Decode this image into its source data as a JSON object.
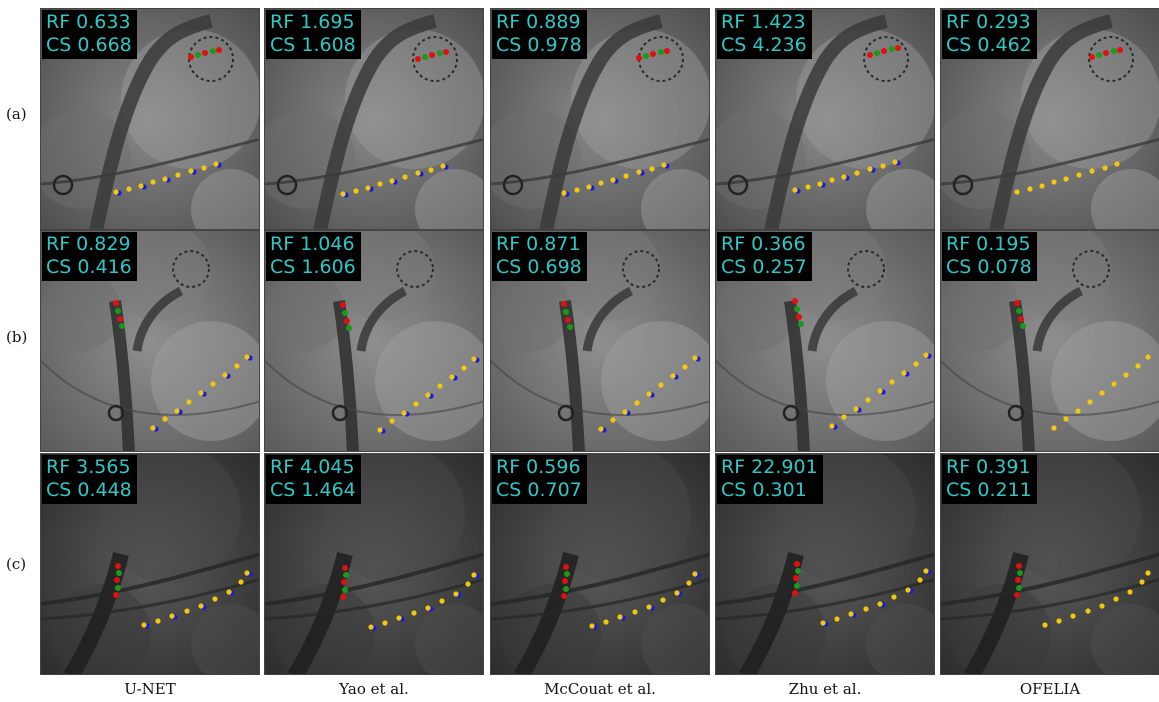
{
  "rows": [
    {
      "label": "(a)",
      "type": "a"
    },
    {
      "label": "(b)",
      "type": "b"
    },
    {
      "label": "(c)",
      "type": "c"
    }
  ],
  "columns": [
    "U-NET",
    "Yao et al.",
    "McCouat et al.",
    "Zhu et al.",
    "OFELIA"
  ],
  "metrics": [
    [
      {
        "rf": "RF 0.633",
        "cs": "CS 0.668"
      },
      {
        "rf": "RF 1.695",
        "cs": "CS 1.608"
      },
      {
        "rf": "RF 0.889",
        "cs": "CS 0.978"
      },
      {
        "rf": "RF 1.423",
        "cs": "CS 4.236"
      },
      {
        "rf": "RF 0.293",
        "cs": "CS 0.462"
      }
    ],
    [
      {
        "rf": "RF 0.829",
        "cs": "CS 0.416"
      },
      {
        "rf": "RF 1.046",
        "cs": "CS 1.606"
      },
      {
        "rf": "RF 0.871",
        "cs": "CS 0.698"
      },
      {
        "rf": "RF 0.366",
        "cs": "CS 0.257"
      },
      {
        "rf": "RF 0.195",
        "cs": "CS 0.078"
      }
    ],
    [
      {
        "rf": "RF 3.565",
        "cs": "CS 0.448"
      },
      {
        "rf": "RF 4.045",
        "cs": "CS 1.464"
      },
      {
        "rf": "RF 0.596",
        "cs": "CS 0.707"
      },
      {
        "rf": "RF 22.901",
        "cs": "CS 0.301"
      },
      {
        "rf": "RF 0.391",
        "cs": "CS 0.211"
      }
    ]
  ],
  "colors": {
    "metric_text": "#2cc7c7",
    "metric_bg": "#000000",
    "marker_red": "#e01010",
    "marker_green": "#1a9a1a",
    "marker_blue": "#1a1adc",
    "marker_yellow": "#f2c80c"
  }
}
